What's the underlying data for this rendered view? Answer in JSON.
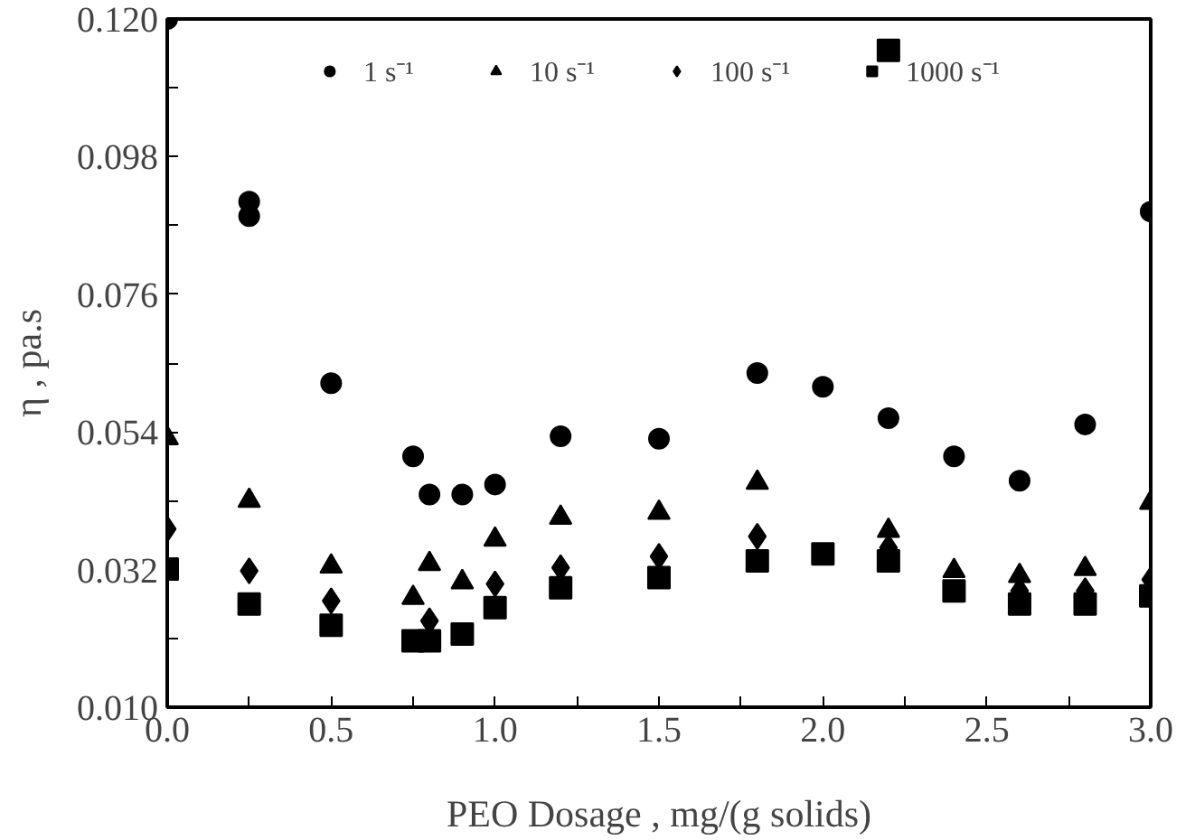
{
  "chart_data": {
    "type": "scatter",
    "xlabel": "PEO Dosage , mg/(g solids)",
    "ylabel": "η , pa.s",
    "xlim": [
      0,
      3.0
    ],
    "ylim": [
      0.01,
      0.12
    ],
    "xticks": [
      {
        "value": 0,
        "label": "0.0"
      },
      {
        "value": 0.25,
        "label": null
      },
      {
        "value": 0.5,
        "label": "0.5"
      },
      {
        "value": 0.75,
        "label": null
      },
      {
        "value": 1.0,
        "label": "1.0"
      },
      {
        "value": 1.25,
        "label": null
      },
      {
        "value": 1.5,
        "label": "1.5"
      },
      {
        "value": 1.75,
        "label": null
      },
      {
        "value": 2.0,
        "label": "2.0"
      },
      {
        "value": 2.25,
        "label": null
      },
      {
        "value": 2.5,
        "label": "2.5"
      },
      {
        "value": 2.75,
        "label": null
      },
      {
        "value": 3.0,
        "label": "3.0"
      }
    ],
    "yticks": [
      {
        "value": 0.01,
        "label": "0.010"
      },
      {
        "value": 0.021,
        "label": null
      },
      {
        "value": 0.032,
        "label": "0.032"
      },
      {
        "value": 0.043,
        "label": null
      },
      {
        "value": 0.054,
        "label": "0.054"
      },
      {
        "value": 0.065,
        "label": null
      },
      {
        "value": 0.076,
        "label": "0.076"
      },
      {
        "value": 0.087,
        "label": null
      },
      {
        "value": 0.098,
        "label": "0.098"
      },
      {
        "value": 0.109,
        "label": null
      },
      {
        "value": 0.12,
        "label": "0.120"
      }
    ],
    "grid": false,
    "legend": "top",
    "series": [
      {
        "name": "1 s⁻¹",
        "color": "#000000",
        "marker": "circle",
        "x": [
          0,
          0.25,
          0.25,
          0.5,
          0.75,
          0.8,
          0.9,
          1.0,
          1.2,
          1.5,
          1.8,
          2.0,
          2.2,
          2.4,
          2.6,
          2.8,
          3.0
        ],
        "values": [
          0.12,
          0.0908,
          0.0885,
          0.0618,
          0.0501,
          0.044,
          0.044,
          0.0456,
          0.0533,
          0.0529,
          0.0634,
          0.0612,
          0.0562,
          0.0501,
          0.0462,
          0.0552,
          0.0892
        ]
      },
      {
        "name": "10 s⁻¹",
        "color": "#000000",
        "marker": "triangle",
        "x": [
          0,
          0.25,
          0.5,
          0.75,
          0.8,
          0.9,
          1.0,
          1.2,
          1.5,
          1.8,
          2.2,
          2.4,
          2.6,
          2.8,
          3.0
        ],
        "values": [
          0.053,
          0.043,
          0.0325,
          0.0275,
          0.0329,
          0.03,
          0.0368,
          0.0403,
          0.0411,
          0.0459,
          0.0382,
          0.0318,
          0.031,
          0.0321,
          0.0427
        ]
      },
      {
        "name": "100 s⁻¹",
        "color": "#000000",
        "marker": "diamond",
        "x": [
          0,
          0.25,
          0.5,
          0.8,
          1.0,
          1.2,
          1.5,
          1.8,
          2.2,
          2.6,
          2.8,
          3.0
        ],
        "values": [
          0.0385,
          0.0318,
          0.027,
          0.0238,
          0.0297,
          0.0323,
          0.0341,
          0.0373,
          0.0355,
          0.0286,
          0.0286,
          0.0304
        ]
      },
      {
        "name": "1000 s⁻¹",
        "color": "#000000",
        "marker": "square",
        "x": [
          0,
          0.25,
          0.5,
          0.75,
          0.8,
          0.9,
          1.0,
          1.2,
          1.5,
          1.8,
          2.0,
          2.2,
          2.2,
          2.4,
          2.6,
          2.8,
          3.0
        ],
        "values": [
          0.0321,
          0.0265,
          0.0231,
          0.0206,
          0.0206,
          0.0217,
          0.0259,
          0.0291,
          0.0307,
          0.0334,
          0.0345,
          0.0334,
          0.115,
          0.0286,
          0.0265,
          0.0265,
          0.0278
        ]
      }
    ]
  }
}
